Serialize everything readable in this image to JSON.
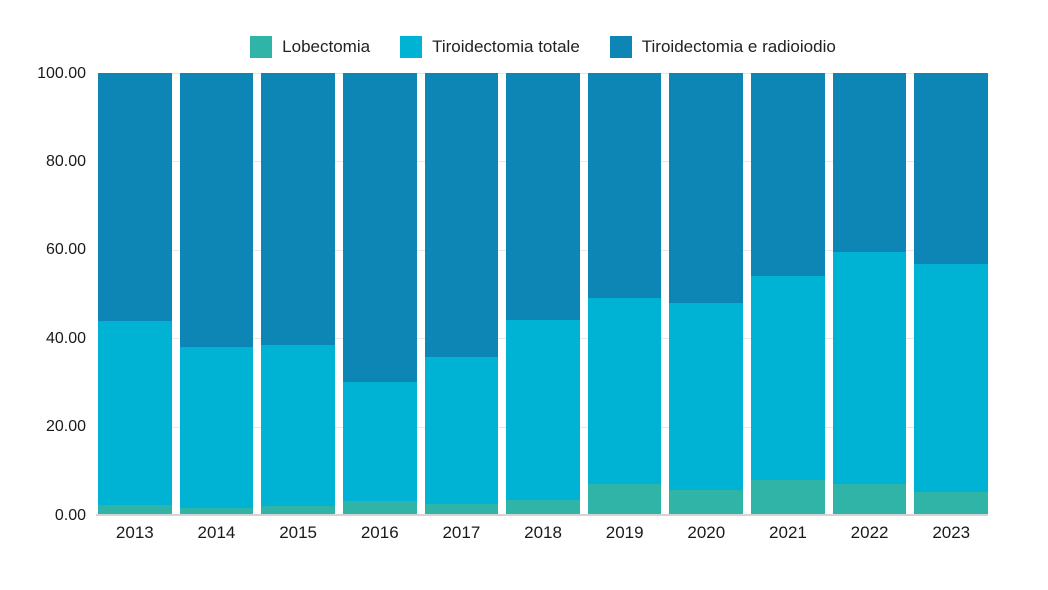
{
  "chart_data": {
    "type": "bar",
    "stacked": true,
    "title": "",
    "xlabel": "",
    "ylabel": "",
    "legend_position": "top",
    "grid": "horizontal",
    "ylim": [
      0,
      100
    ],
    "ytick_step": 20,
    "ytick_labels": [
      "0.00",
      "20.00",
      "40.00",
      "60.00",
      "80.00",
      "100.00"
    ],
    "categories": [
      "2013",
      "2014",
      "2015",
      "2016",
      "2017",
      "2018",
      "2019",
      "2020",
      "2021",
      "2022",
      "2023"
    ],
    "series": [
      {
        "name": "Lobectomia",
        "color": "#30b4a8",
        "values": [
          2.2,
          1.5,
          2.0,
          3.2,
          2.5,
          3.5,
          7.0,
          5.6,
          7.9,
          7.0,
          5.3
        ]
      },
      {
        "name": "Tiroidectomia totale",
        "color": "#00b2d4",
        "values": [
          41.7,
          36.5,
          36.4,
          26.8,
          33.2,
          40.7,
          42.0,
          42.4,
          46.1,
          52.4,
          51.5
        ]
      },
      {
        "name": "Tiroidectomia e radioiodio",
        "color": "#0e86b5",
        "values": [
          56.1,
          62.0,
          61.6,
          70.0,
          64.3,
          55.8,
          51.0,
          52.0,
          46.0,
          40.6,
          43.2
        ]
      }
    ],
    "colors": {
      "background": "#ffffff",
      "gridline": "#e7e7e7",
      "axis_line": "#d4d4d4",
      "tick_text": "#1a1a1a",
      "legend_text": "#222222"
    }
  }
}
